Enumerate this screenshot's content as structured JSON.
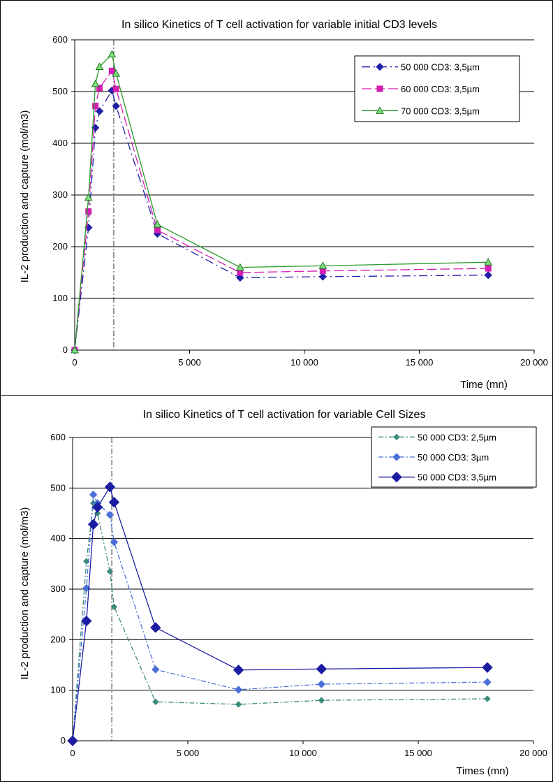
{
  "chart_data": [
    {
      "type": "line",
      "title": "In silico Kinetics of T cell activation for variable initial CD3 levels",
      "xlabel": "Time (mn)",
      "ylabel": "IL-2 production and capture (mol/m3)",
      "xlim": [
        0,
        20000
      ],
      "ylim": [
        0,
        600
      ],
      "xticks": [
        "0",
        "5 000",
        "10 000",
        "15 000",
        "20 000"
      ],
      "yticks": [
        "0",
        "100",
        "200",
        "300",
        "400",
        "500",
        "600"
      ],
      "grid": "horizontal",
      "legend_position": "top-right",
      "vline_x": 1700,
      "series": [
        {
          "name": "50 000 CD3: 3,5µm",
          "color": "#1f1fa8",
          "marker": "diamond",
          "dash": "long-dash-dot",
          "x": [
            0,
            600,
            900,
            1080,
            1620,
            1800,
            3600,
            7200,
            10800,
            18000
          ],
          "y": [
            0,
            237,
            430,
            462,
            502,
            472,
            225,
            140,
            142,
            145
          ]
        },
        {
          "name": "60 000 CD3: 3,5µm",
          "color": "#d21fb0",
          "marker": "square",
          "dash": "long-dash",
          "x": [
            0,
            600,
            900,
            1080,
            1620,
            1800,
            3600,
            7200,
            10800,
            18000
          ],
          "y": [
            0,
            268,
            472,
            507,
            540,
            505,
            232,
            150,
            153,
            158
          ]
        },
        {
          "name": "70 000 CD3: 3,5µm",
          "color": "#2a9a2a",
          "marker": "triangle",
          "dash": "solid",
          "x": [
            0,
            600,
            900,
            1080,
            1620,
            1800,
            3600,
            7200,
            10800,
            18000
          ],
          "y": [
            0,
            295,
            515,
            548,
            572,
            535,
            243,
            160,
            163,
            170
          ]
        }
      ]
    },
    {
      "type": "line",
      "title": "In silico Kinetics of T cell activation for variable Cell Sizes",
      "xlabel": "Times (mn)",
      "ylabel": "IL-2 production and capture (mol/m3)",
      "xlim": [
        0,
        20000
      ],
      "ylim": [
        0,
        600
      ],
      "xticks": [
        "0",
        "5 000",
        "10 000",
        "15 000",
        "20 000"
      ],
      "yticks": [
        "0",
        "100",
        "200",
        "300",
        "400",
        "500",
        "600"
      ],
      "grid": "horizontal",
      "legend_position": "top-right",
      "vline_x": 1700,
      "series": [
        {
          "name": "50 000 CD3: 2,5µm",
          "color": "#3a8a7a",
          "marker": "diamond-small",
          "dash": "dash-dot",
          "x": [
            0,
            600,
            900,
            1080,
            1620,
            1800,
            3600,
            7200,
            10800,
            18000
          ],
          "y": [
            0,
            355,
            470,
            450,
            335,
            265,
            77,
            72,
            80,
            83
          ]
        },
        {
          "name": "50 000 CD3: 3µm",
          "color": "#4a6fd6",
          "marker": "diamond",
          "dash": "dash-dot",
          "x": [
            0,
            600,
            900,
            1080,
            1620,
            1800,
            3600,
            7200,
            10800,
            18000
          ],
          "y": [
            0,
            302,
            487,
            470,
            447,
            393,
            141,
            101,
            112,
            116
          ]
        },
        {
          "name": "50 000 CD3: 3,5µm",
          "color": "#1c1ca3",
          "marker": "diamond-large",
          "dash": "solid",
          "x": [
            0,
            600,
            900,
            1080,
            1620,
            1800,
            3600,
            7200,
            10800,
            18000
          ],
          "y": [
            0,
            237,
            428,
            462,
            502,
            472,
            224,
            140,
            142,
            145
          ]
        }
      ]
    }
  ]
}
